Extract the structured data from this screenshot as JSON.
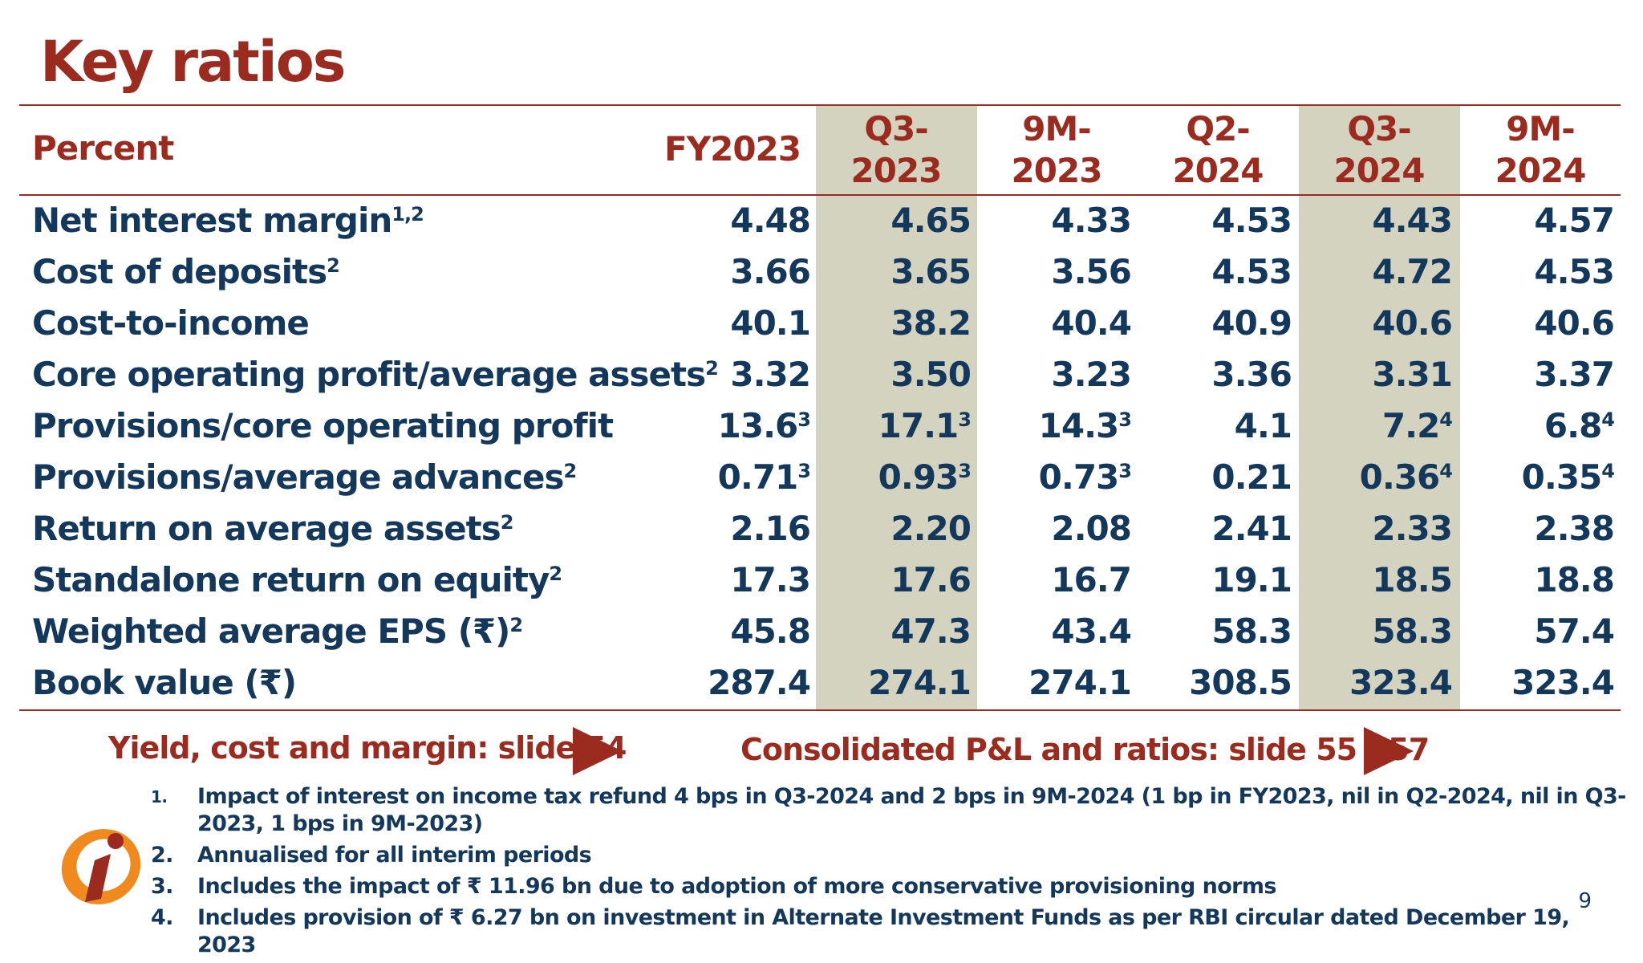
{
  "title": "Key ratios",
  "table": {
    "label_header": "Percent",
    "columns": [
      "FY2023",
      "Q3-\n2023",
      "9M-\n2023",
      "Q2-\n2024",
      "Q3-\n2024",
      "9M-\n2024"
    ],
    "rows": [
      {
        "label": "Net interest margin",
        "label_sup": "1,2",
        "values": [
          "4.48",
          "4.65",
          "4.33",
          "4.53",
          "4.43",
          "4.57"
        ],
        "sups": [
          "",
          "",
          "",
          "",
          "",
          ""
        ]
      },
      {
        "label": "Cost of deposits",
        "label_sup": "2",
        "values": [
          "3.66",
          "3.65",
          "3.56",
          "4.53",
          "4.72",
          "4.53"
        ],
        "sups": [
          "",
          "",
          "",
          "",
          "",
          ""
        ]
      },
      {
        "label": "Cost-to-income",
        "label_sup": "",
        "values": [
          "40.1",
          "38.2",
          "40.4",
          "40.9",
          "40.6",
          "40.6"
        ],
        "sups": [
          "",
          "",
          "",
          "",
          "",
          ""
        ]
      },
      {
        "label": "Core operating profit/average assets",
        "label_sup": "2",
        "values": [
          "3.32",
          "3.50",
          "3.23",
          "3.36",
          "3.31",
          "3.37"
        ],
        "sups": [
          "",
          "",
          "",
          "",
          "",
          ""
        ]
      },
      {
        "label": "Provisions/core operating profit",
        "label_sup": "",
        "values": [
          "13.6",
          "17.1",
          "14.3",
          "4.1",
          "7.2",
          "6.8"
        ],
        "sups": [
          "3",
          "3",
          "3",
          "",
          "4",
          "4"
        ]
      },
      {
        "label": "Provisions/average advances",
        "label_sup": "2",
        "values": [
          "0.71",
          "0.93",
          "0.73",
          "0.21",
          "0.36",
          "0.35"
        ],
        "sups": [
          "3",
          "3",
          "3",
          "",
          "4",
          "4"
        ]
      },
      {
        "label": "Return on average assets",
        "label_sup": "2",
        "values": [
          "2.16",
          "2.20",
          "2.08",
          "2.41",
          "2.33",
          "2.38"
        ],
        "sups": [
          "",
          "",
          "",
          "",
          "",
          ""
        ]
      },
      {
        "label": "Standalone return on equity",
        "label_sup": "2",
        "values": [
          "17.3",
          "17.6",
          "16.7",
          "19.1",
          "18.5",
          "18.8"
        ],
        "sups": [
          "",
          "",
          "",
          "",
          "",
          ""
        ]
      },
      {
        "label": "Weighted average EPS (₹)",
        "label_sup": "2",
        "values": [
          "45.8",
          "47.3",
          "43.4",
          "58.3",
          "58.3",
          "57.4"
        ],
        "sups": [
          "",
          "",
          "",
          "",
          "",
          ""
        ]
      },
      {
        "label": "Book value (₹)",
        "label_sup": "",
        "values": [
          "287.4",
          "274.1",
          "274.1",
          "308.5",
          "323.4",
          "323.4"
        ],
        "sups": [
          "",
          "",
          "",
          "",
          "",
          ""
        ]
      }
    ]
  },
  "links": {
    "left": "Yield, cost and margin: slide 54",
    "right": "Consolidated P&L and ratios: slide 55 - 57"
  },
  "notes": [
    {
      "num": "1.",
      "text": "Impact of interest on income tax refund 4 bps in Q3-2024 and 2 bps in 9M-2024 (1 bp in FY2023, nil in Q2-2024, nil in Q3-2023, 1 bps in 9M-2023)"
    },
    {
      "num": "2.",
      "text": "Annualised for all interim periods"
    },
    {
      "num": "3.",
      "text": "Includes the impact of ₹ 11.96 bn due to adoption of more conservative provisioning norms"
    },
    {
      "num": "4.",
      "text": "Includes provision of ₹ 6.27 bn on investment in Alternate Investment Funds as per RBI circular dated December 19, 2023"
    }
  ],
  "page_number": "9",
  "colors": {
    "accent": "#9b2b1f",
    "text": "#14385c",
    "highlight": "#d4d3bf",
    "logo_orange": "#f08a1e"
  }
}
